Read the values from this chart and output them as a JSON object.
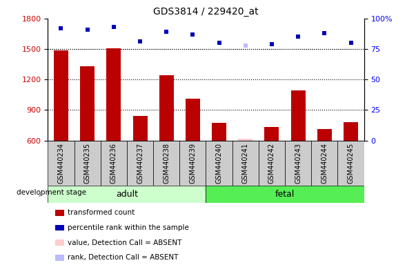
{
  "title": "GDS3814 / 229420_at",
  "categories": [
    "GSM440234",
    "GSM440235",
    "GSM440236",
    "GSM440237",
    "GSM440238",
    "GSM440239",
    "GSM440240",
    "GSM440241",
    "GSM440242",
    "GSM440243",
    "GSM440244",
    "GSM440245"
  ],
  "bar_values": [
    1490,
    1330,
    1510,
    840,
    1240,
    1010,
    770,
    615,
    730,
    1095,
    710,
    780
  ],
  "bar_absent": [
    false,
    false,
    false,
    false,
    false,
    false,
    false,
    true,
    false,
    false,
    false,
    false
  ],
  "scatter_values": [
    92,
    91,
    93,
    81,
    89,
    87,
    80,
    78,
    79,
    85,
    88,
    80
  ],
  "scatter_absent": [
    false,
    false,
    false,
    false,
    false,
    false,
    false,
    true,
    false,
    false,
    false,
    false
  ],
  "ylim_left": [
    600,
    1800
  ],
  "ylim_right": [
    0,
    100
  ],
  "yticks_left": [
    600,
    900,
    1200,
    1500,
    1800
  ],
  "yticks_right": [
    0,
    25,
    50,
    75,
    100
  ],
  "ytick_labels_right": [
    "0",
    "25",
    "50",
    "75",
    "100%"
  ],
  "bar_color": "#bb0000",
  "bar_absent_color": "#ffcccc",
  "scatter_color": "#0000bb",
  "scatter_absent_color": "#bbbbff",
  "group_info": [
    {
      "label": "adult",
      "start": 0,
      "end": 5,
      "color": "#ccffcc"
    },
    {
      "label": "fetal",
      "start": 6,
      "end": 11,
      "color": "#55ee55"
    }
  ],
  "stage_label": "development stage",
  "bar_width": 0.55,
  "legend_items": [
    {
      "label": "transformed count",
      "color": "#bb0000"
    },
    {
      "label": "percentile rank within the sample",
      "color": "#0000bb"
    },
    {
      "label": "value, Detection Call = ABSENT",
      "color": "#ffcccc"
    },
    {
      "label": "rank, Detection Call = ABSENT",
      "color": "#bbbbff"
    }
  ]
}
